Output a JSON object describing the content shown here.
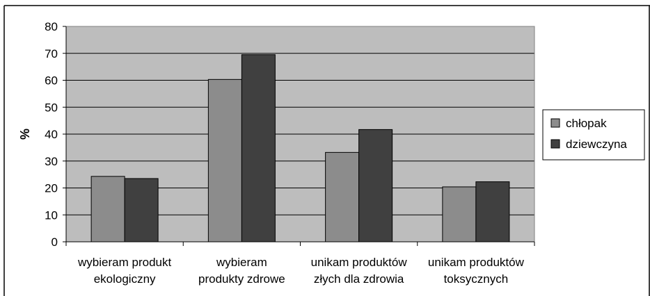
{
  "chart_data": {
    "type": "bar",
    "title": "",
    "xlabel": "",
    "ylabel": "%",
    "ylim": [
      0,
      80
    ],
    "yticks": [
      0,
      10,
      20,
      30,
      40,
      50,
      60,
      70,
      80
    ],
    "grid": true,
    "legend_position": "right",
    "categories": [
      [
        "wybieram produkt",
        "ekologiczny"
      ],
      [
        "wybieram",
        "produkty zdrowe"
      ],
      [
        "unikam produktów",
        "złych dla zdrowia"
      ],
      [
        "unikam produktów",
        "toksycznych"
      ]
    ],
    "series": [
      {
        "name": "chłopak",
        "values": [
          24.3,
          60.3,
          33.2,
          20.4
        ],
        "color": "#8c8c8c"
      },
      {
        "name": "dziewczyna",
        "values": [
          23.5,
          69.5,
          41.7,
          22.3
        ],
        "color": "#404040"
      }
    ],
    "plot_background": "#bdbdbd"
  }
}
